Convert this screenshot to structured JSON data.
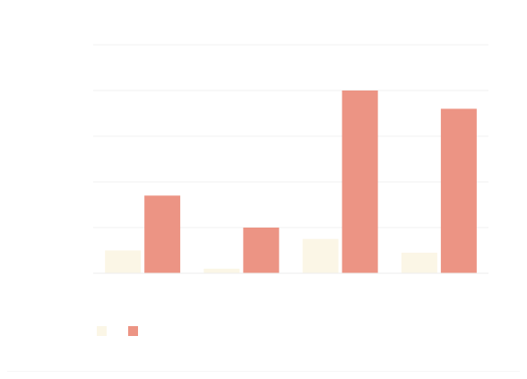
{
  "chart_data": {
    "type": "bar",
    "categories": [
      "",
      "",
      "",
      ""
    ],
    "series": [
      {
        "name": "",
        "color": "#fbf6e6",
        "values": [
          5,
          1,
          7.5,
          4.5
        ]
      },
      {
        "name": "",
        "color": "#ec9484",
        "values": [
          17,
          10,
          40,
          36
        ]
      }
    ],
    "ylim": [
      0,
      50
    ],
    "yticks": [
      0,
      10,
      20,
      30,
      40,
      50
    ],
    "ytick_labels": [
      "",
      "",
      "",
      "",
      "",
      ""
    ],
    "grid": true,
    "title": "",
    "xlabel": "",
    "ylabel": "",
    "legend_position": "bottom-left"
  }
}
